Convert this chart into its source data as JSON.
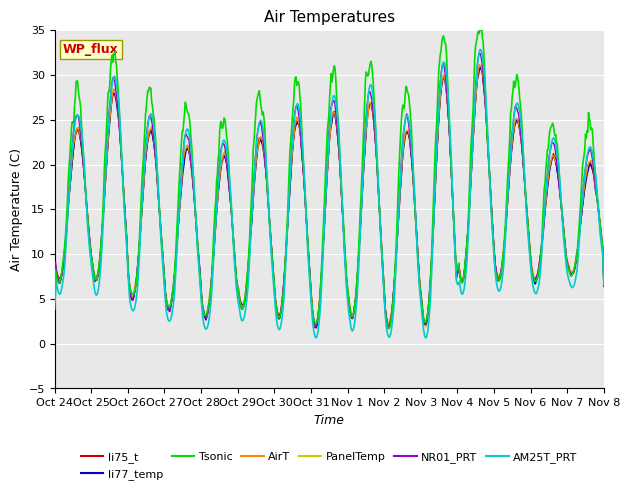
{
  "title": "Air Temperatures",
  "xlabel": "Time",
  "ylabel": "Air Temperature (C)",
  "ylim": [
    -5,
    35
  ],
  "x_tick_labels": [
    "Oct 24",
    "Oct 25",
    "Oct 26",
    "Oct 27",
    "Oct 28",
    "Oct 29",
    "Oct 30",
    "Oct 31",
    "Nov 1",
    "Nov 2",
    "Nov 3",
    "Nov 4",
    "Nov 5",
    "Nov 6",
    "Nov 7",
    "Nov 8"
  ],
  "series": {
    "li75_t": {
      "color": "#cc0000",
      "lw": 1.0,
      "zorder": 3
    },
    "li77_temp": {
      "color": "#0000cc",
      "lw": 1.0,
      "zorder": 3
    },
    "Tsonic": {
      "color": "#00dd00",
      "lw": 1.2,
      "zorder": 4
    },
    "AirT": {
      "color": "#ff8800",
      "lw": 1.0,
      "zorder": 3
    },
    "PanelTemp": {
      "color": "#cccc00",
      "lw": 1.0,
      "zorder": 2
    },
    "NR01_PRT": {
      "color": "#9900cc",
      "lw": 1.0,
      "zorder": 3
    },
    "AM25T_PRT": {
      "color": "#00cccc",
      "lw": 1.2,
      "zorder": 5
    }
  },
  "annotation_text": "WP_flux",
  "annotation_color": "#cc0000",
  "annotation_bg": "#ffffcc",
  "background_color": "#e8e8e8",
  "title_fontsize": 11,
  "label_fontsize": 9,
  "tick_fontsize": 8
}
